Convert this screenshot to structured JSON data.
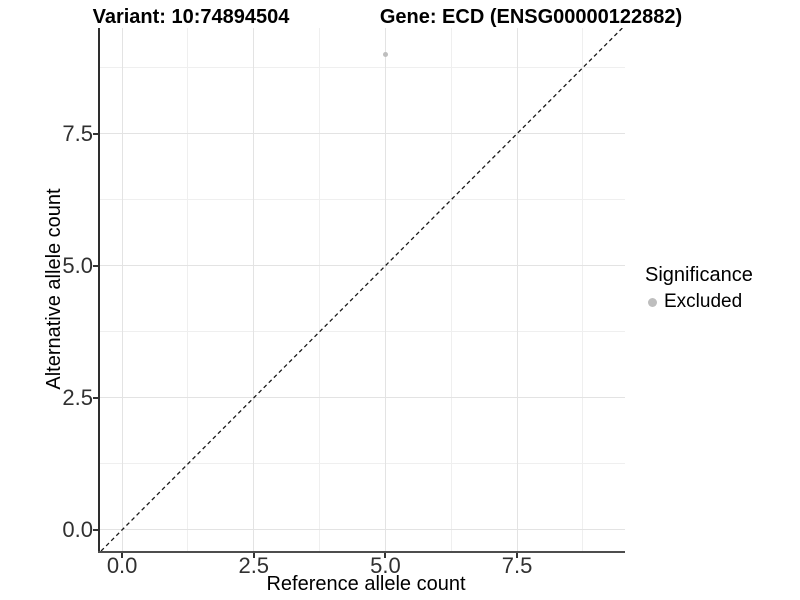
{
  "titles": {
    "left": "Variant: 10:74894504",
    "right": "Gene: ECD (ENSG00000122882)"
  },
  "legend": {
    "title": "Significance",
    "items": [
      {
        "label": "Excluded",
        "color": "#bebebe"
      }
    ],
    "position": "right"
  },
  "chart_data": {
    "type": "scatter",
    "title_left": "Variant: 10:74894504",
    "title_right": "Gene: ECD (ENSG00000122882)",
    "xlabel": "Reference allele count",
    "ylabel": "Alternative allele count",
    "xlim": [
      -0.42,
      9.55
    ],
    "ylim": [
      -0.4,
      9.5
    ],
    "x_ticks": {
      "values": [
        0,
        2.5,
        5,
        7.5
      ],
      "labels": [
        "0.0",
        "2.5",
        "5.0",
        "7.5"
      ]
    },
    "y_ticks": {
      "values": [
        0,
        2.5,
        5,
        7.5
      ],
      "labels": [
        "0.0",
        "2.5",
        "5.0",
        "7.5"
      ]
    },
    "minor_grid_step": 1.25,
    "series": [
      {
        "name": "Excluded",
        "color": "#bebebe",
        "points": [
          {
            "x": 5,
            "y": 9
          }
        ]
      }
    ],
    "reference_line": {
      "type": "identity y=x",
      "style": "dashed",
      "color": "#1a1a1a"
    },
    "grid": "major+minor light gray on white",
    "legend_position": "right"
  },
  "style": {
    "background": "#ffffff",
    "grid_major_color": "#e3e3e3",
    "grid_minor_color": "#efefef",
    "axis_line_color": "#333333",
    "tick_color": "#333333",
    "text_color": "#000000",
    "point_color": "#bebebe"
  }
}
